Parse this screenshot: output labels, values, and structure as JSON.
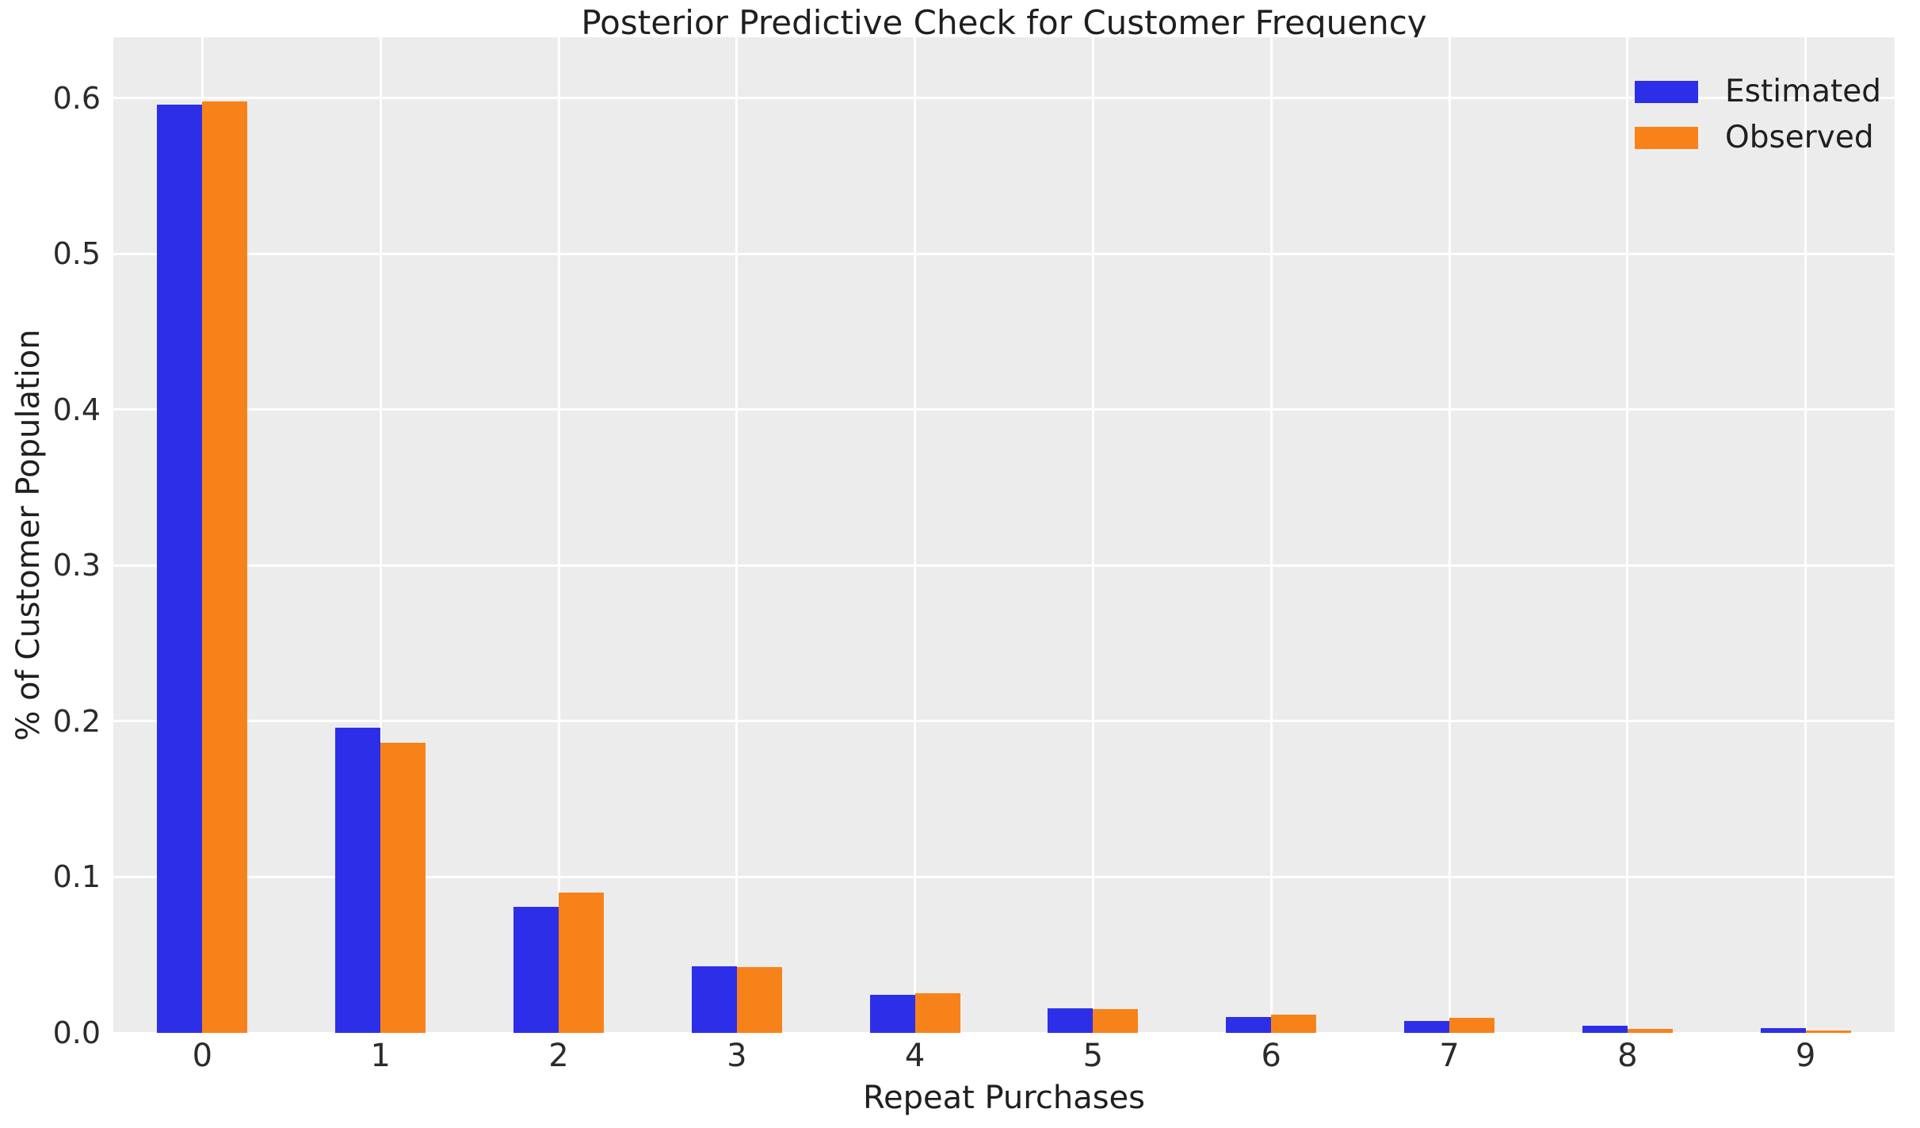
{
  "title": "Posterior Predictive Check for Customer Frequency",
  "chart_data": {
    "type": "bar",
    "title": "Posterior Predictive Check for Customer Frequency",
    "xlabel": "Repeat Purchases",
    "ylabel": "% of Customer Population",
    "categories": [
      "0",
      "1",
      "2",
      "3",
      "4",
      "5",
      "6",
      "7",
      "8",
      "9"
    ],
    "series": [
      {
        "name": "Estimated",
        "color": "#2d2fe8",
        "values": [
          0.596,
          0.196,
          0.081,
          0.0425,
          0.0245,
          0.016,
          0.01,
          0.0075,
          0.0045,
          0.0032
        ]
      },
      {
        "name": "Observed",
        "color": "#f8821a",
        "values": [
          0.598,
          0.186,
          0.09,
          0.042,
          0.0255,
          0.0153,
          0.0118,
          0.0095,
          0.0025,
          0.0017
        ]
      }
    ],
    "yticks": [
      0.0,
      0.1,
      0.2,
      0.3,
      0.4,
      0.5,
      0.6
    ],
    "ytick_labels": [
      "0.0",
      "0.1",
      "0.2",
      "0.3",
      "0.4",
      "0.5",
      "0.6"
    ],
    "ylim": [
      0,
      0.639
    ],
    "grid": true,
    "grid_color": "#ffffff",
    "plot_background": "#ececec",
    "legend_position": "upper right"
  }
}
